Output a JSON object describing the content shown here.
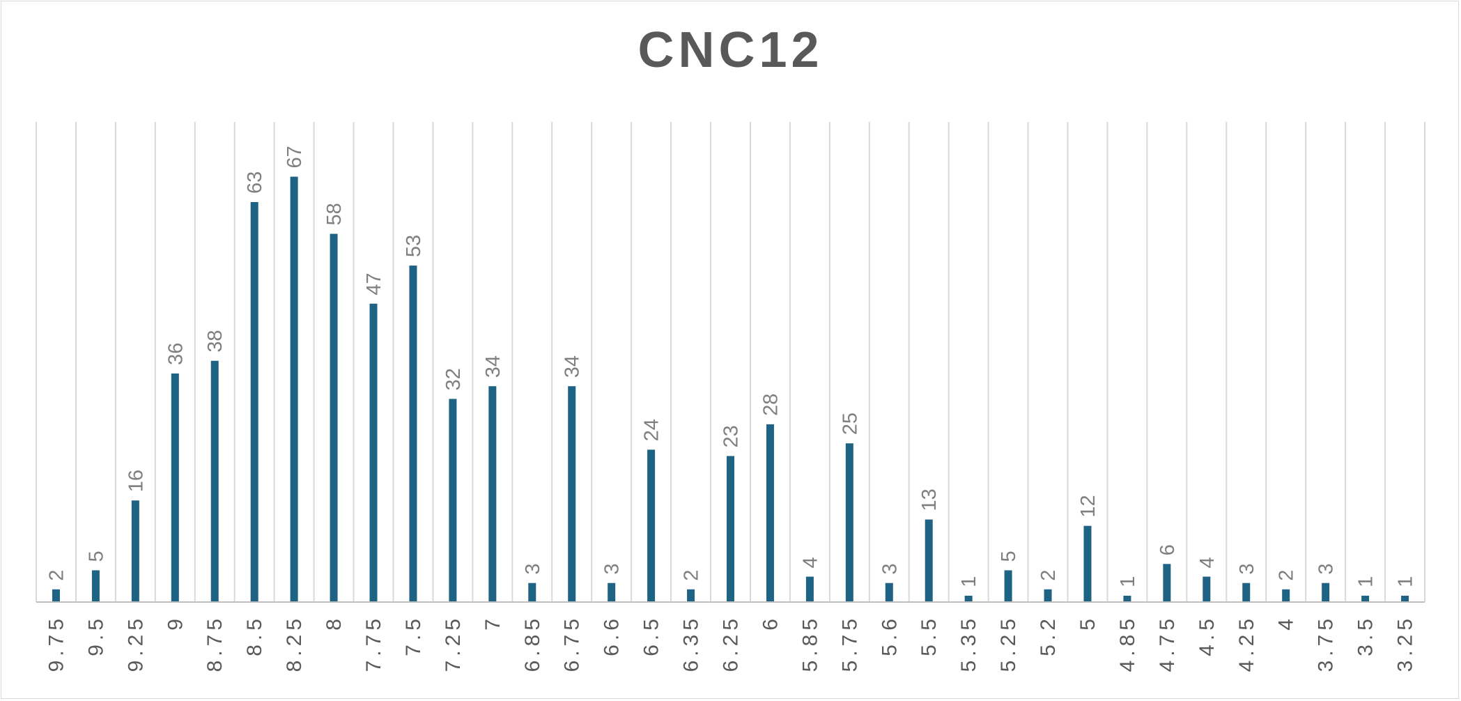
{
  "chart_data": {
    "type": "bar",
    "title": "CNC12",
    "categories": [
      "9.75",
      "9.5",
      "9.25",
      "9",
      "8.75",
      "8.5",
      "8.25",
      "8",
      "7.75",
      "7.5",
      "7.25",
      "7",
      "6.85",
      "6.75",
      "6.6",
      "6.5",
      "6.35",
      "6.25",
      "6",
      "5.85",
      "5.75",
      "5.6",
      "5.5",
      "5.35",
      "5.25",
      "5.2",
      "5",
      "4.85",
      "4.75",
      "4.5",
      "4.25",
      "4",
      "3.75",
      "3.5",
      "3.25"
    ],
    "values": [
      2,
      5,
      16,
      36,
      38,
      63,
      67,
      58,
      47,
      53,
      32,
      34,
      3,
      34,
      3,
      24,
      2,
      23,
      28,
      4,
      25,
      3,
      13,
      1,
      5,
      2,
      12,
      1,
      6,
      4,
      3,
      2,
      3,
      1,
      1
    ],
    "ylim": [
      0,
      80
    ],
    "grid": "vertical",
    "data_labels": true,
    "colors": {
      "bar": "#1f6384",
      "gridline": "#d9d9d9",
      "axis": "#bfbfbf"
    }
  }
}
